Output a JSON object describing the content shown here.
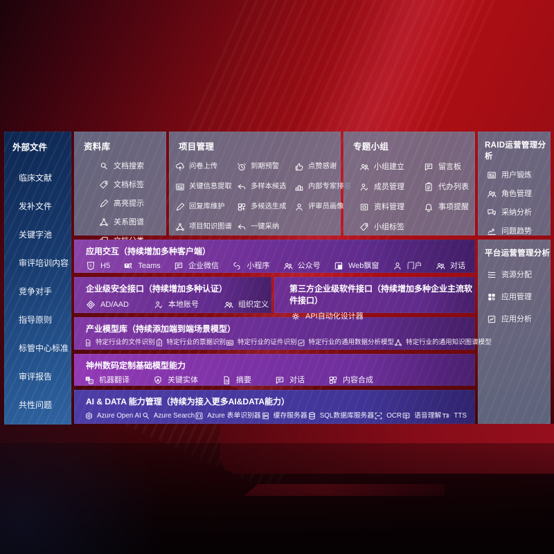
{
  "colors": {
    "background_red": "#a80d15",
    "sidebar_blue": "#24528c",
    "panel_gray_blue": "#6c809c",
    "row_purple": "#7b33a0",
    "bright_purple_row": "#9339b5",
    "ai_row_indigo": "#453a9e",
    "text": "#ffffff"
  },
  "left_sidebar": {
    "title": "外部文件",
    "items": [
      "临床文献",
      "发补文件",
      "关键字池",
      "审评培训内容",
      "竞争对手",
      "指导原则",
      "标管中心标准",
      "审评报告",
      "共性问题"
    ]
  },
  "panels": {
    "library": {
      "title": "资料库",
      "items": [
        {
          "label": "文档搜索",
          "icon": "doc-search-icon"
        },
        {
          "label": "文档标签",
          "icon": "tag-icon"
        },
        {
          "label": "高亮提示",
          "icon": "highlighter-icon"
        },
        {
          "label": "关系图谱",
          "icon": "relation-graph-icon"
        },
        {
          "label": "文档分类",
          "icon": "doc-classify-icon"
        }
      ]
    },
    "project": {
      "title": "项目管理",
      "items": [
        {
          "label": "问卷上传",
          "icon": "cloud-upload-icon"
        },
        {
          "label": "到期预警",
          "icon": "alarm-icon"
        },
        {
          "label": "点赞感谢",
          "icon": "thumbs-up-icon"
        },
        {
          "label": "关键信息提取",
          "icon": "info-extract-icon"
        },
        {
          "label": "多样本候选",
          "icon": "reply-arrow-icon"
        },
        {
          "label": "内部专家排名",
          "icon": "ranking-icon"
        },
        {
          "label": "回复库维护",
          "icon": "edit-pen-icon"
        },
        {
          "label": "多候选生成",
          "icon": "multi-generate-icon"
        },
        {
          "label": "评审员画像",
          "icon": "reviewer-person-icon"
        },
        {
          "label": "项目知识图谱",
          "icon": "knowledge-graph-icon"
        },
        {
          "label": "一键采纳",
          "icon": "adopt-arrow-icon"
        }
      ]
    },
    "group": {
      "title": "专题小组",
      "items": [
        {
          "label": "小组建立",
          "icon": "group-create-icon"
        },
        {
          "label": "留言板",
          "icon": "bbs-board-icon"
        },
        {
          "label": "成员管理",
          "icon": "member-manage-icon"
        },
        {
          "label": "代办列表",
          "icon": "todo-list-icon"
        },
        {
          "label": "资料管理",
          "icon": "data-manage-icon"
        },
        {
          "label": "事项提醒",
          "icon": "reminder-bell-icon"
        },
        {
          "label": "小组标签",
          "icon": "group-tag-icon"
        }
      ]
    },
    "raid": {
      "title": "RAID运营管理分析",
      "items": [
        {
          "label": "用户锻炼",
          "icon": "user-card-icon"
        },
        {
          "label": "角色管理",
          "icon": "role-manage-icon"
        },
        {
          "label": "采纳分析",
          "icon": "qa-analysis-icon"
        },
        {
          "label": "问题趋势",
          "icon": "trend-chart-icon"
        }
      ]
    },
    "platform": {
      "title": "平台运营管理分析",
      "items": [
        {
          "label": "资源分配",
          "icon": "resource-list-icon"
        },
        {
          "label": "应用管理",
          "icon": "apps-grid-icon"
        },
        {
          "label": "应用分析",
          "icon": "app-analysis-icon"
        }
      ]
    }
  },
  "rows": {
    "app_interaction": {
      "title": "应用交互（持续增加多种客户端）",
      "items": [
        {
          "label": "H5",
          "icon": "h5-icon"
        },
        {
          "label": "Teams",
          "icon": "teams-icon"
        },
        {
          "label": "企业微信",
          "icon": "wechat-work-icon"
        },
        {
          "label": "小程序",
          "icon": "miniprogram-icon"
        },
        {
          "label": "公众号",
          "icon": "official-account-icon"
        },
        {
          "label": "Web飘窗",
          "icon": "web-window-icon"
        },
        {
          "label": "门户",
          "icon": "portal-icon"
        },
        {
          "label": "对话",
          "icon": "dialog-icon"
        }
      ]
    },
    "security": {
      "title": "企业级安全接口（持续增加多种认证）",
      "items": [
        {
          "label": "AD/AAD",
          "icon": "ad-aad-icon"
        },
        {
          "label": "本地账号",
          "icon": "local-account-icon"
        },
        {
          "label": "组织定义",
          "icon": "org-define-icon"
        }
      ]
    },
    "third_party": {
      "title": "第三方企业级软件接口（持续增加多种企业主流软件接口）",
      "items": [
        {
          "label": "API自动化设计器",
          "icon": "api-designer-icon"
        }
      ]
    },
    "industry_models": {
      "title": "产业模型库（持续添加端到端场景模型）",
      "items": [
        {
          "label": "特定行业的文件识别",
          "icon": "file-recognize-icon"
        },
        {
          "label": "特定行业的票据识别",
          "icon": "receipt-recognize-icon"
        },
        {
          "label": "特定行业的证件识别",
          "icon": "cert-recognize-icon"
        },
        {
          "label": "特定行业的通用数据分析模型",
          "icon": "data-analysis-model-icon"
        },
        {
          "label": "特定行业的通用知识图谱模型",
          "icon": "knowledge-graph-model-icon"
        }
      ]
    },
    "base_models": {
      "title": "神州数码定制基础模型能力",
      "items": [
        {
          "label": "机器翻译",
          "icon": "translate-icon"
        },
        {
          "label": "关键实体",
          "icon": "entity-shield-icon"
        },
        {
          "label": "摘要",
          "icon": "summary-doc-icon"
        },
        {
          "label": "对话",
          "icon": "chat-bubble-icon"
        },
        {
          "label": "内容合成",
          "icon": "content-compose-icon"
        }
      ]
    },
    "ai_data": {
      "title": "AI & DATA 能力管理（持续为接入更多AI&DATA能力）",
      "items": [
        {
          "label": "Azure Open AI",
          "icon": "openai-icon"
        },
        {
          "label": "Azure Search",
          "icon": "azure-search-icon"
        },
        {
          "label": "Azure 表单识别器",
          "icon": "form-recognizer-icon"
        },
        {
          "label": "缓存服务器",
          "icon": "cache-server-icon"
        },
        {
          "label": "SQL数据库服务器",
          "icon": "sql-database-icon"
        },
        {
          "label": "OCR",
          "icon": "ocr-icon"
        },
        {
          "label": "语音理解",
          "icon": "speech-understand-icon"
        },
        {
          "label": "TTS",
          "icon": "tts-icon"
        }
      ]
    }
  }
}
